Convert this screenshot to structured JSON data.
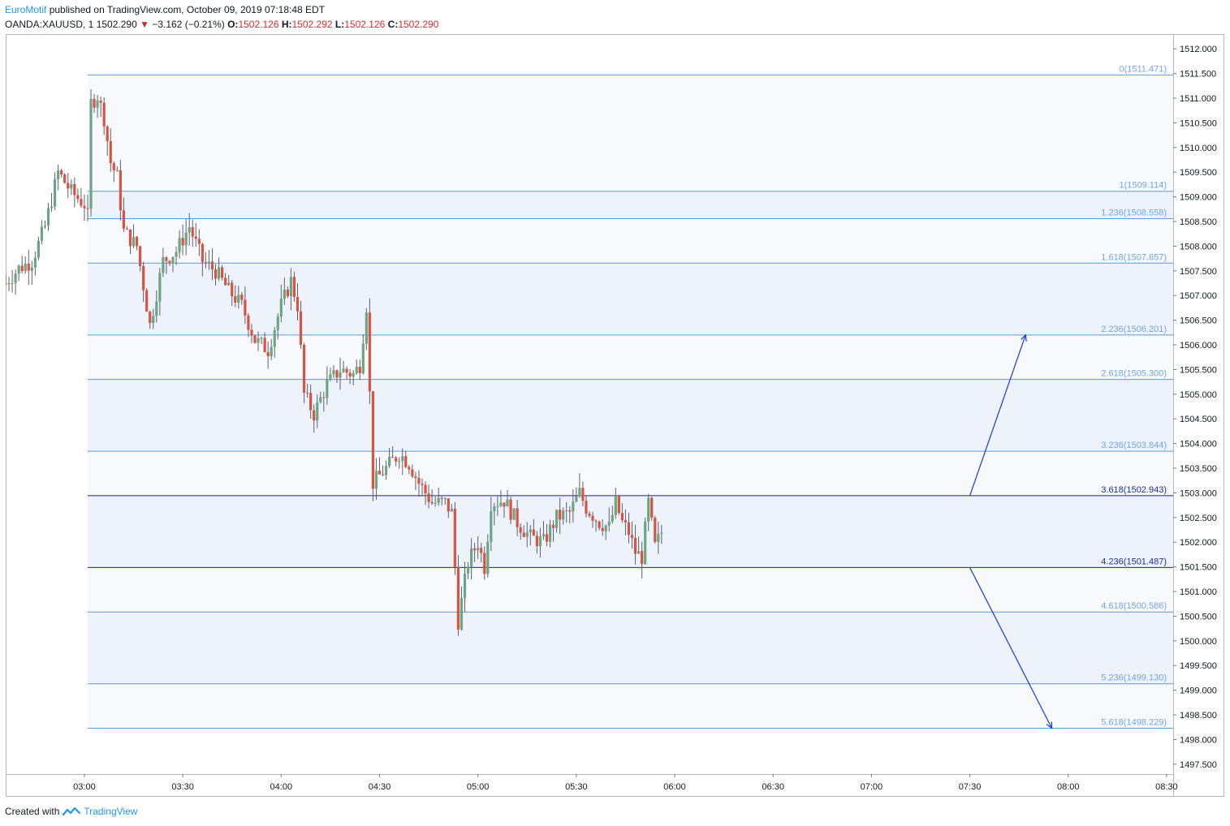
{
  "header": {
    "author": "EuroMotif",
    "published_text": "published on TradingView.com, October 09, 2019 07:18:48 EDT"
  },
  "symbol_line": {
    "symbol": "OANDA:XAUUSD, 1",
    "last": "1502.290",
    "change": "−3.162 (−0.21%)",
    "o_label": "O:",
    "o_value": "1502.126",
    "h_label": "H:",
    "h_value": "1502.292",
    "l_label": "L:",
    "l_value": "1502.126",
    "c_label": "C:",
    "c_value": "1502.290"
  },
  "footer": {
    "created_with": "Created with",
    "brand": "TradingView"
  },
  "colors": {
    "up": "#6ba583",
    "down": "#d75442",
    "fib_line": "#5b9bd5",
    "fib_label": "#6fa8dc",
    "fib_key_line": "#1a237e",
    "fib_key_label": "#1a3399",
    "arrow": "#1a3bd6",
    "band": "#eef2fb",
    "band_alt": "#f8f9fd"
  },
  "chart_data": {
    "type": "candlestick",
    "y_ticks": [
      "1497.500",
      "1498.000",
      "1498.500",
      "1499.000",
      "1499.500",
      "1500.000",
      "1500.500",
      "1501.000",
      "1501.500",
      "1502.000",
      "1502.500",
      "1503.000",
      "1503.500",
      "1504.000",
      "1504.500",
      "1505.000",
      "1505.500",
      "1506.000",
      "1506.500",
      "1507.000",
      "1507.500",
      "1508.000",
      "1508.500",
      "1509.000",
      "1509.500",
      "1510.000",
      "1510.500",
      "1511.000",
      "1511.500",
      "1512.000"
    ],
    "ylim": [
      1497.3,
      1512.3
    ],
    "x_ticks": [
      "03:00",
      "03:30",
      "04:00",
      "04:30",
      "05:00",
      "05:30",
      "06:00",
      "06:30",
      "07:00",
      "07:30",
      "08:00",
      "08:30"
    ],
    "x_range_minutes": [
      156,
      512
    ],
    "fib_levels": [
      {
        "ratio": "0",
        "price": 1511.471,
        "label": "0(1511.471)"
      },
      {
        "ratio": "1",
        "price": 1509.114,
        "label": "1(1509.114)"
      },
      {
        "ratio": "1.236",
        "price": 1508.558,
        "label": "1.236(1508.558)"
      },
      {
        "ratio": "1.618",
        "price": 1507.657,
        "label": "1.618(1507.657)"
      },
      {
        "ratio": "2.236",
        "price": 1506.201,
        "label": "2.236(1506.201)"
      },
      {
        "ratio": "2.618",
        "price": 1505.3,
        "label": "2.618(1505.300)"
      },
      {
        "ratio": "3.236",
        "price": 1503.844,
        "label": "3.236(1503.844)"
      },
      {
        "ratio": "3.618",
        "price": 1502.943,
        "label": "3.618(1502.943)"
      },
      {
        "ratio": "4.236",
        "price": 1501.487,
        "label": "4.236(1501.487)"
      },
      {
        "ratio": "4.618",
        "price": 1500.586,
        "label": "4.618(1500.586)"
      },
      {
        "ratio": "5.236",
        "price": 1499.13,
        "label": "5.236(1499.130)"
      },
      {
        "ratio": "5.618",
        "price": 1498.229,
        "label": "5.618(1498.229)"
      }
    ],
    "fib_start_minute": 181,
    "arrows": [
      {
        "from": [
          450,
          1502.943
        ],
        "to": [
          467,
          1506.201
        ]
      },
      {
        "from": [
          450,
          1501.487
        ],
        "to": [
          475,
          1498.229
        ]
      }
    ],
    "anchors": [
      [
        156,
        1507.25
      ],
      [
        160,
        1507.55
      ],
      [
        164,
        1507.7
      ],
      [
        168,
        1508.4
      ],
      [
        172,
        1509.5
      ],
      [
        176,
        1509.1
      ],
      [
        180,
        1508.85
      ],
      [
        181,
        1508.6
      ],
      [
        182,
        1510.9
      ],
      [
        184,
        1511.05
      ],
      [
        186,
        1510.6
      ],
      [
        188,
        1509.7
      ],
      [
        190,
        1509.4
      ],
      [
        192,
        1508.3
      ],
      [
        196,
        1508.0
      ],
      [
        198,
        1507.2
      ],
      [
        200,
        1506.4
      ],
      [
        204,
        1507.7
      ],
      [
        208,
        1507.9
      ],
      [
        212,
        1508.4
      ],
      [
        216,
        1507.7
      ],
      [
        220,
        1507.5
      ],
      [
        224,
        1507.1
      ],
      [
        228,
        1506.8
      ],
      [
        232,
        1506.1
      ],
      [
        236,
        1505.9
      ],
      [
        240,
        1506.8
      ],
      [
        243,
        1507.3
      ],
      [
        245,
        1506.8
      ],
      [
        247,
        1505.0
      ],
      [
        250,
        1504.6
      ],
      [
        254,
        1505.2
      ],
      [
        258,
        1505.5
      ],
      [
        262,
        1505.4
      ],
      [
        264,
        1505.6
      ],
      [
        266,
        1506.8
      ],
      [
        268,
        1503.2
      ],
      [
        272,
        1503.5
      ],
      [
        276,
        1503.8
      ],
      [
        279,
        1503.6
      ],
      [
        282,
        1503.2
      ],
      [
        286,
        1502.8
      ],
      [
        290,
        1502.8
      ],
      [
        292,
        1502.6
      ],
      [
        294,
        1500.4
      ],
      [
        297,
        1501.6
      ],
      [
        300,
        1502.0
      ],
      [
        302,
        1501.5
      ],
      [
        304,
        1502.8
      ],
      [
        308,
        1502.85
      ],
      [
        312,
        1502.4
      ],
      [
        316,
        1502.1
      ],
      [
        320,
        1502.0
      ],
      [
        324,
        1502.5
      ],
      [
        328,
        1502.6
      ],
      [
        331,
        1503.0
      ],
      [
        333,
        1502.7
      ],
      [
        337,
        1502.4
      ],
      [
        340,
        1502.3
      ],
      [
        342,
        1502.8
      ],
      [
        344,
        1502.4
      ],
      [
        346,
        1502.2
      ],
      [
        348,
        1501.8
      ],
      [
        350,
        1501.7
      ],
      [
        352,
        1502.8
      ],
      [
        354,
        1501.9
      ],
      [
        356,
        1502.2
      ]
    ]
  }
}
